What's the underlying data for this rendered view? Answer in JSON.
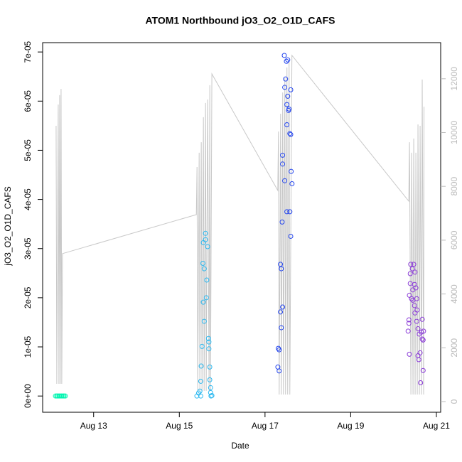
{
  "chart_data": {
    "type": "scatter",
    "title": "ATOM1 Northbound jO3_O2_O1D_CAFS",
    "x_label": "Date",
    "y_label": "jO3_O2_O1D_CAFS",
    "xlim": [
      11.81,
      21.1
    ],
    "ylim": [
      -3.3e-06,
      7.19e-05
    ],
    "y2lim": [
      -396,
      13342
    ],
    "xticks": [
      {
        "value": 13,
        "label": "Aug 13"
      },
      {
        "value": 15,
        "label": "Aug 15"
      },
      {
        "value": 17,
        "label": "Aug 17"
      },
      {
        "value": 19,
        "label": "Aug 19"
      },
      {
        "value": 21,
        "label": "Aug 21"
      }
    ],
    "yticks": [
      {
        "value": 0,
        "label": "0e+00"
      },
      {
        "value": 1e-05,
        "label": "1e-05"
      },
      {
        "value": 2e-05,
        "label": "2e-05"
      },
      {
        "value": 3e-05,
        "label": "3e-05"
      },
      {
        "value": 4e-05,
        "label": "4e-05"
      },
      {
        "value": 5e-05,
        "label": "5e-05"
      },
      {
        "value": 6e-05,
        "label": "6e-05"
      },
      {
        "value": 7e-05,
        "label": "7e-05"
      }
    ],
    "y2ticks": [
      0,
      2000,
      4000,
      6000,
      8000,
      10000,
      12000
    ],
    "series": [
      {
        "type": "line",
        "axis": "y2",
        "color": "#c8c8c8",
        "x": [
          12.124,
          12.14,
          12.174,
          12.19,
          12.207,
          12.223,
          12.24,
          12.256,
          12.273,
          15.397,
          15.413,
          15.43,
          15.463,
          15.479,
          15.512,
          15.529,
          15.562,
          15.579,
          15.612,
          15.628,
          15.661,
          15.694,
          15.711,
          15.727,
          15.76,
          17.298,
          17.314,
          17.331,
          17.364,
          17.38,
          17.413,
          17.43,
          17.463,
          17.479,
          17.512,
          17.529,
          17.562,
          17.579,
          17.628,
          20.355,
          20.372,
          20.405,
          20.421,
          20.455,
          20.471,
          20.504,
          20.521,
          20.554,
          20.57,
          20.603,
          20.62,
          20.653,
          20.669,
          20.702,
          20.711
        ],
        "values": [
          10250,
          660,
          11040,
          660,
          11390,
          660,
          11620,
          660,
          5500,
          6950,
          8720,
          400,
          9250,
          400,
          9640,
          400,
          10570,
          400,
          11100,
          400,
          11230,
          400,
          11760,
          400,
          12180,
          7850,
          10040,
          260,
          10700,
          260,
          11490,
          260,
          12020,
          260,
          12420,
          260,
          12680,
          260,
          12870,
          7450,
          9640,
          260,
          9250,
          260,
          9780,
          260,
          9250,
          260,
          10300,
          260,
          10250,
          260,
          11970,
          260,
          10960
        ]
      },
      {
        "type": "scatter",
        "color": "#00f5b0",
        "x": [
          12.11,
          12.14,
          12.16,
          12.19,
          12.21,
          12.24,
          12.26,
          12.29,
          12.31,
          12.34
        ],
        "values": [
          0,
          0,
          0,
          0,
          0,
          0,
          0,
          0,
          0,
          0
        ]
      },
      {
        "type": "scatter",
        "color": "#2ab8f0",
        "x": [
          15.41,
          15.45,
          15.48,
          15.5,
          15.51,
          15.53,
          15.56,
          15.56,
          15.55,
          15.58,
          15.61,
          15.61,
          15.63,
          15.66,
          15.64,
          15.68,
          15.69,
          15.69,
          15.71,
          15.71,
          15.73,
          15.73,
          15.74,
          15.76,
          15.58,
          15.5
        ],
        "values": [
          0,
          6e-07,
          1e-06,
          3e-06,
          6.1e-06,
          1.01e-05,
          1.91e-05,
          3.12e-05,
          2.7e-05,
          2.59e-05,
          3.31e-05,
          3.18e-05,
          2e-05,
          3.04e-05,
          2.36e-05,
          1.17e-05,
          9.6e-06,
          1.1e-05,
          5.9e-06,
          3.3e-06,
          1.7e-06,
          7e-07,
          0,
          1e-07,
          1.52e-05,
          0
        ]
      },
      {
        "type": "scatter",
        "color": "#2244ee",
        "x": [
          17.3,
          17.33,
          17.31,
          17.33,
          17.36,
          17.38,
          17.36,
          17.38,
          17.41,
          17.4,
          17.41,
          17.41,
          17.46,
          17.45,
          17.46,
          17.48,
          17.5,
          17.53,
          17.51,
          17.51,
          17.53,
          17.55,
          17.56,
          17.58,
          17.6,
          17.6,
          17.51,
          17.58,
          17.61,
          17.63,
          17.6
        ],
        "values": [
          5.9e-06,
          5.1e-06,
          9.7e-06,
          9.4e-06,
          1.71e-05,
          1.39e-05,
          2.68e-05,
          2.59e-05,
          1.81e-05,
          3.54e-05,
          4.72e-05,
          4.9e-05,
          4.38e-05,
          6.93e-05,
          6.28e-05,
          6.45e-05,
          6.81e-05,
          6.84e-05,
          5.93e-05,
          5.52e-05,
          6.1e-05,
          5.81e-05,
          5.84e-05,
          5.34e-05,
          5.32e-05,
          6.23e-05,
          3.75e-05,
          3.75e-05,
          4.57e-05,
          4.32e-05,
          3.25e-05
        ]
      },
      {
        "type": "scatter",
        "color": "#8a3ad8",
        "x": [
          20.34,
          20.36,
          20.36,
          20.37,
          20.37,
          20.39,
          20.4,
          20.39,
          20.42,
          20.44,
          20.45,
          20.45,
          20.47,
          20.49,
          20.49,
          20.5,
          20.52,
          20.5,
          20.54,
          20.54,
          20.55,
          20.57,
          20.57,
          20.59,
          20.6,
          20.62,
          20.63,
          20.65,
          20.67,
          20.67,
          20.69,
          20.7,
          20.69
        ],
        "values": [
          1.32e-05,
          1.55e-05,
          1.48e-05,
          8.5e-06,
          2.05e-05,
          2.49e-05,
          2.68e-05,
          2.29e-05,
          1.98e-05,
          2.59e-05,
          2.16e-05,
          1.95e-05,
          2.68e-05,
          2.27e-05,
          1.84e-05,
          2.52e-05,
          2.2e-05,
          1.69e-05,
          1.98e-05,
          1.52e-05,
          1.75e-05,
          8.2e-06,
          1.37e-05,
          7.4e-06,
          1.26e-05,
          8.8e-06,
          2.7e-06,
          1.3e-05,
          1.16e-05,
          1.56e-05,
          5.2e-06,
          1.32e-05,
          1.14e-05
        ]
      }
    ]
  }
}
